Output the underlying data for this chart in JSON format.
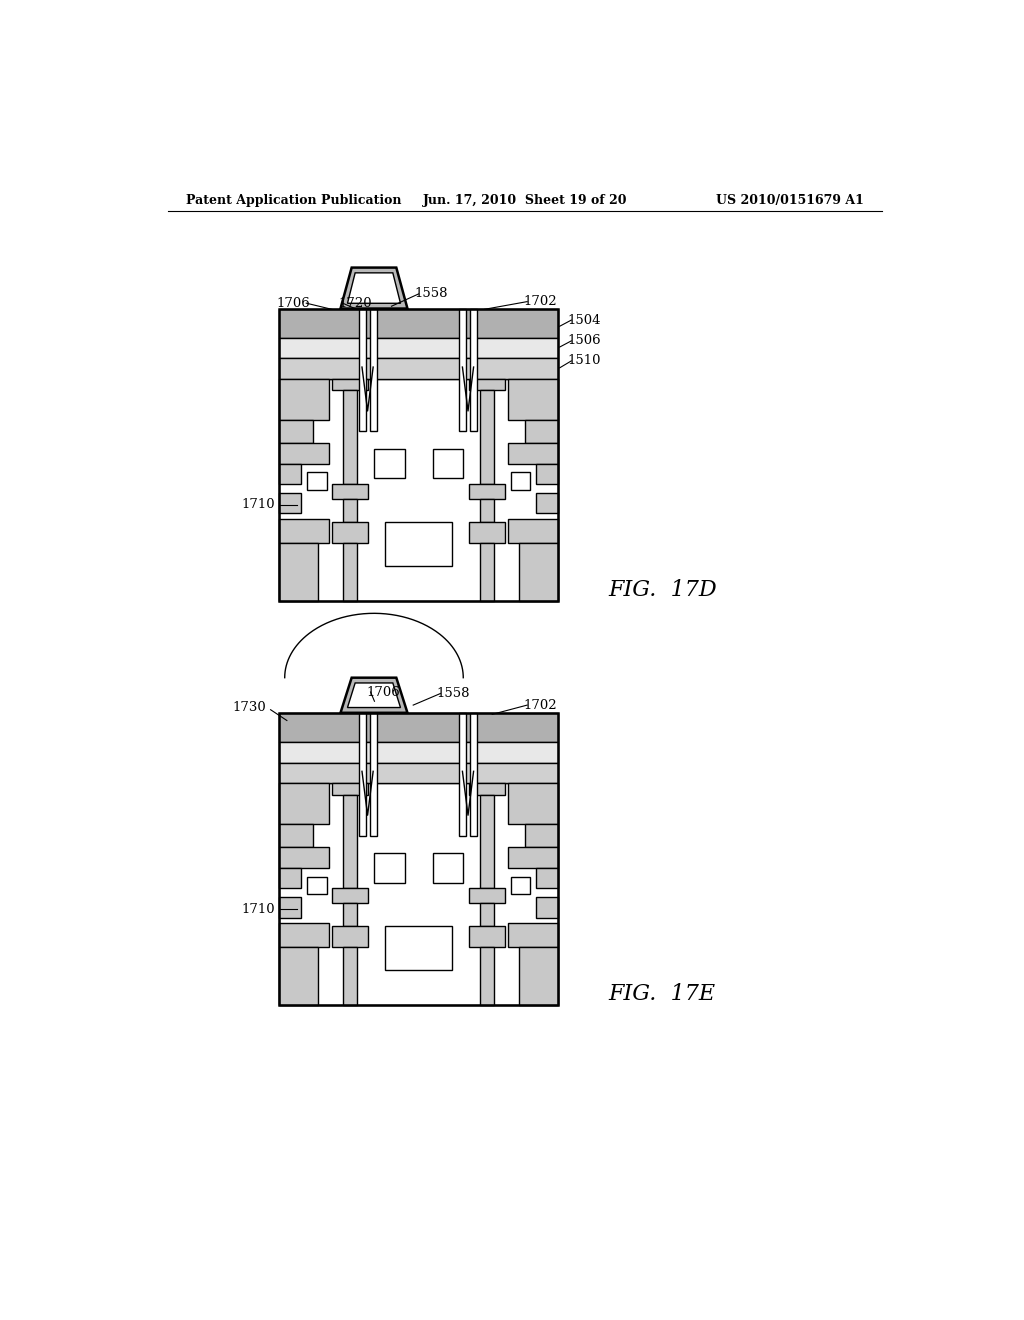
{
  "bg_color": "#ffffff",
  "lc": "#000000",
  "header_left": "Patent Application Publication",
  "header_center": "Jun. 17, 2010  Sheet 19 of 20",
  "header_right": "US 2010/0151679 A1",
  "fig17d_label": "FIG.  17D",
  "fig17e_label": "FIG.  17E"
}
